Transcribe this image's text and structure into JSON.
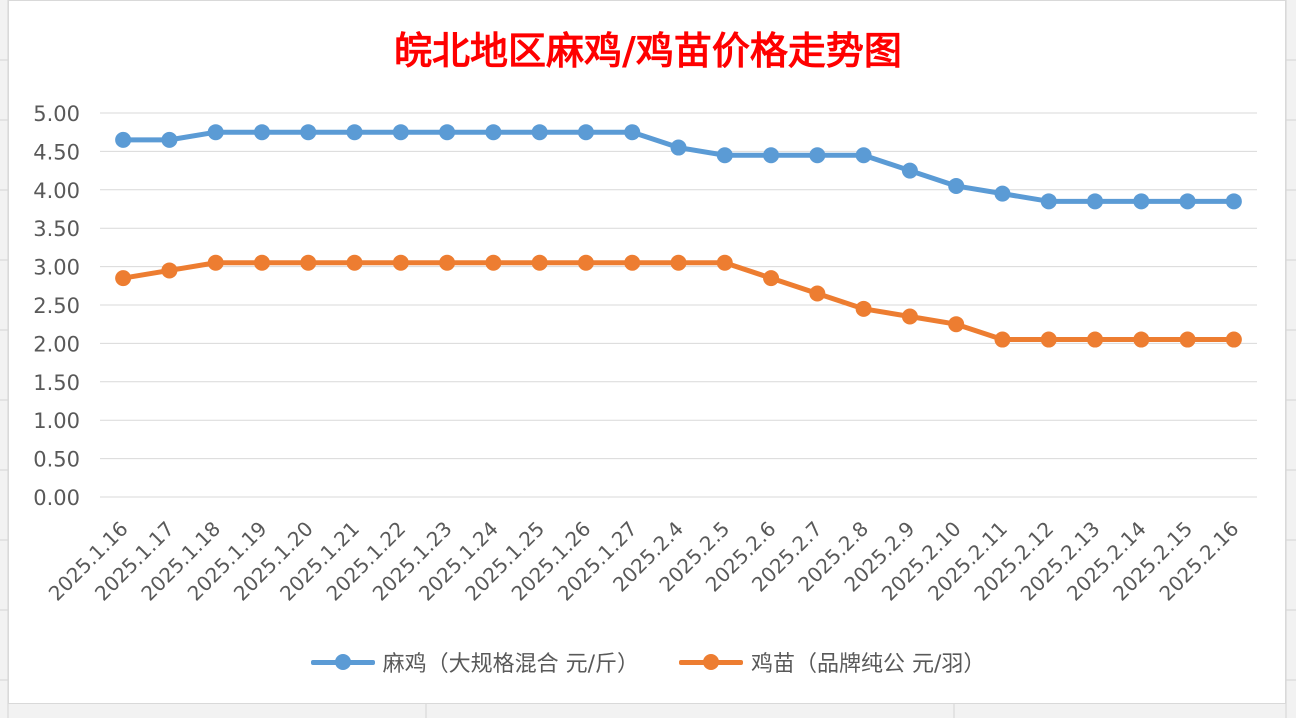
{
  "chart_data": {
    "type": "line",
    "title": "皖北地区麻鸡/鸡苗价格走势图",
    "categories": [
      "2025.1.16",
      "2025.1.17",
      "2025.1.18",
      "2025.1.19",
      "2025.1.20",
      "2025.1.21",
      "2025.1.22",
      "2025.1.23",
      "2025.1.24",
      "2025.1.25",
      "2025.1.26",
      "2025.1.27",
      "2025.2.4",
      "2025.2.5",
      "2025.2.6",
      "2025.2.7",
      "2025.2.8",
      "2025.2.9",
      "2025.2.10",
      "2025.2.11",
      "2025.2.12",
      "2025.2.13",
      "2025.2.14",
      "2025.2.15",
      "2025.2.16"
    ],
    "series": [
      {
        "name": "麻鸡（大规格混合 元/斤）",
        "color": "#5b9bd5",
        "values": [
          4.65,
          4.65,
          4.75,
          4.75,
          4.75,
          4.75,
          4.75,
          4.75,
          4.75,
          4.75,
          4.75,
          4.75,
          4.55,
          4.45,
          4.45,
          4.45,
          4.45,
          4.25,
          4.05,
          3.95,
          3.85,
          3.85,
          3.85,
          3.85,
          3.85
        ]
      },
      {
        "name": "鸡苗（品牌纯公 元/羽）",
        "color": "#ed7d31",
        "values": [
          2.85,
          2.95,
          3.05,
          3.05,
          3.05,
          3.05,
          3.05,
          3.05,
          3.05,
          3.05,
          3.05,
          3.05,
          3.05,
          3.05,
          2.85,
          2.65,
          2.45,
          2.35,
          2.25,
          2.05,
          2.05,
          2.05,
          2.05,
          2.05,
          2.05
        ]
      }
    ],
    "yticks": [
      "0.00",
      "0.50",
      "1.00",
      "1.50",
      "2.00",
      "2.50",
      "3.00",
      "3.50",
      "4.00",
      "4.50",
      "5.00"
    ],
    "ylim": [
      0,
      5
    ],
    "grid": true,
    "legend_position": "bottom",
    "title_color": "#ff0000"
  }
}
